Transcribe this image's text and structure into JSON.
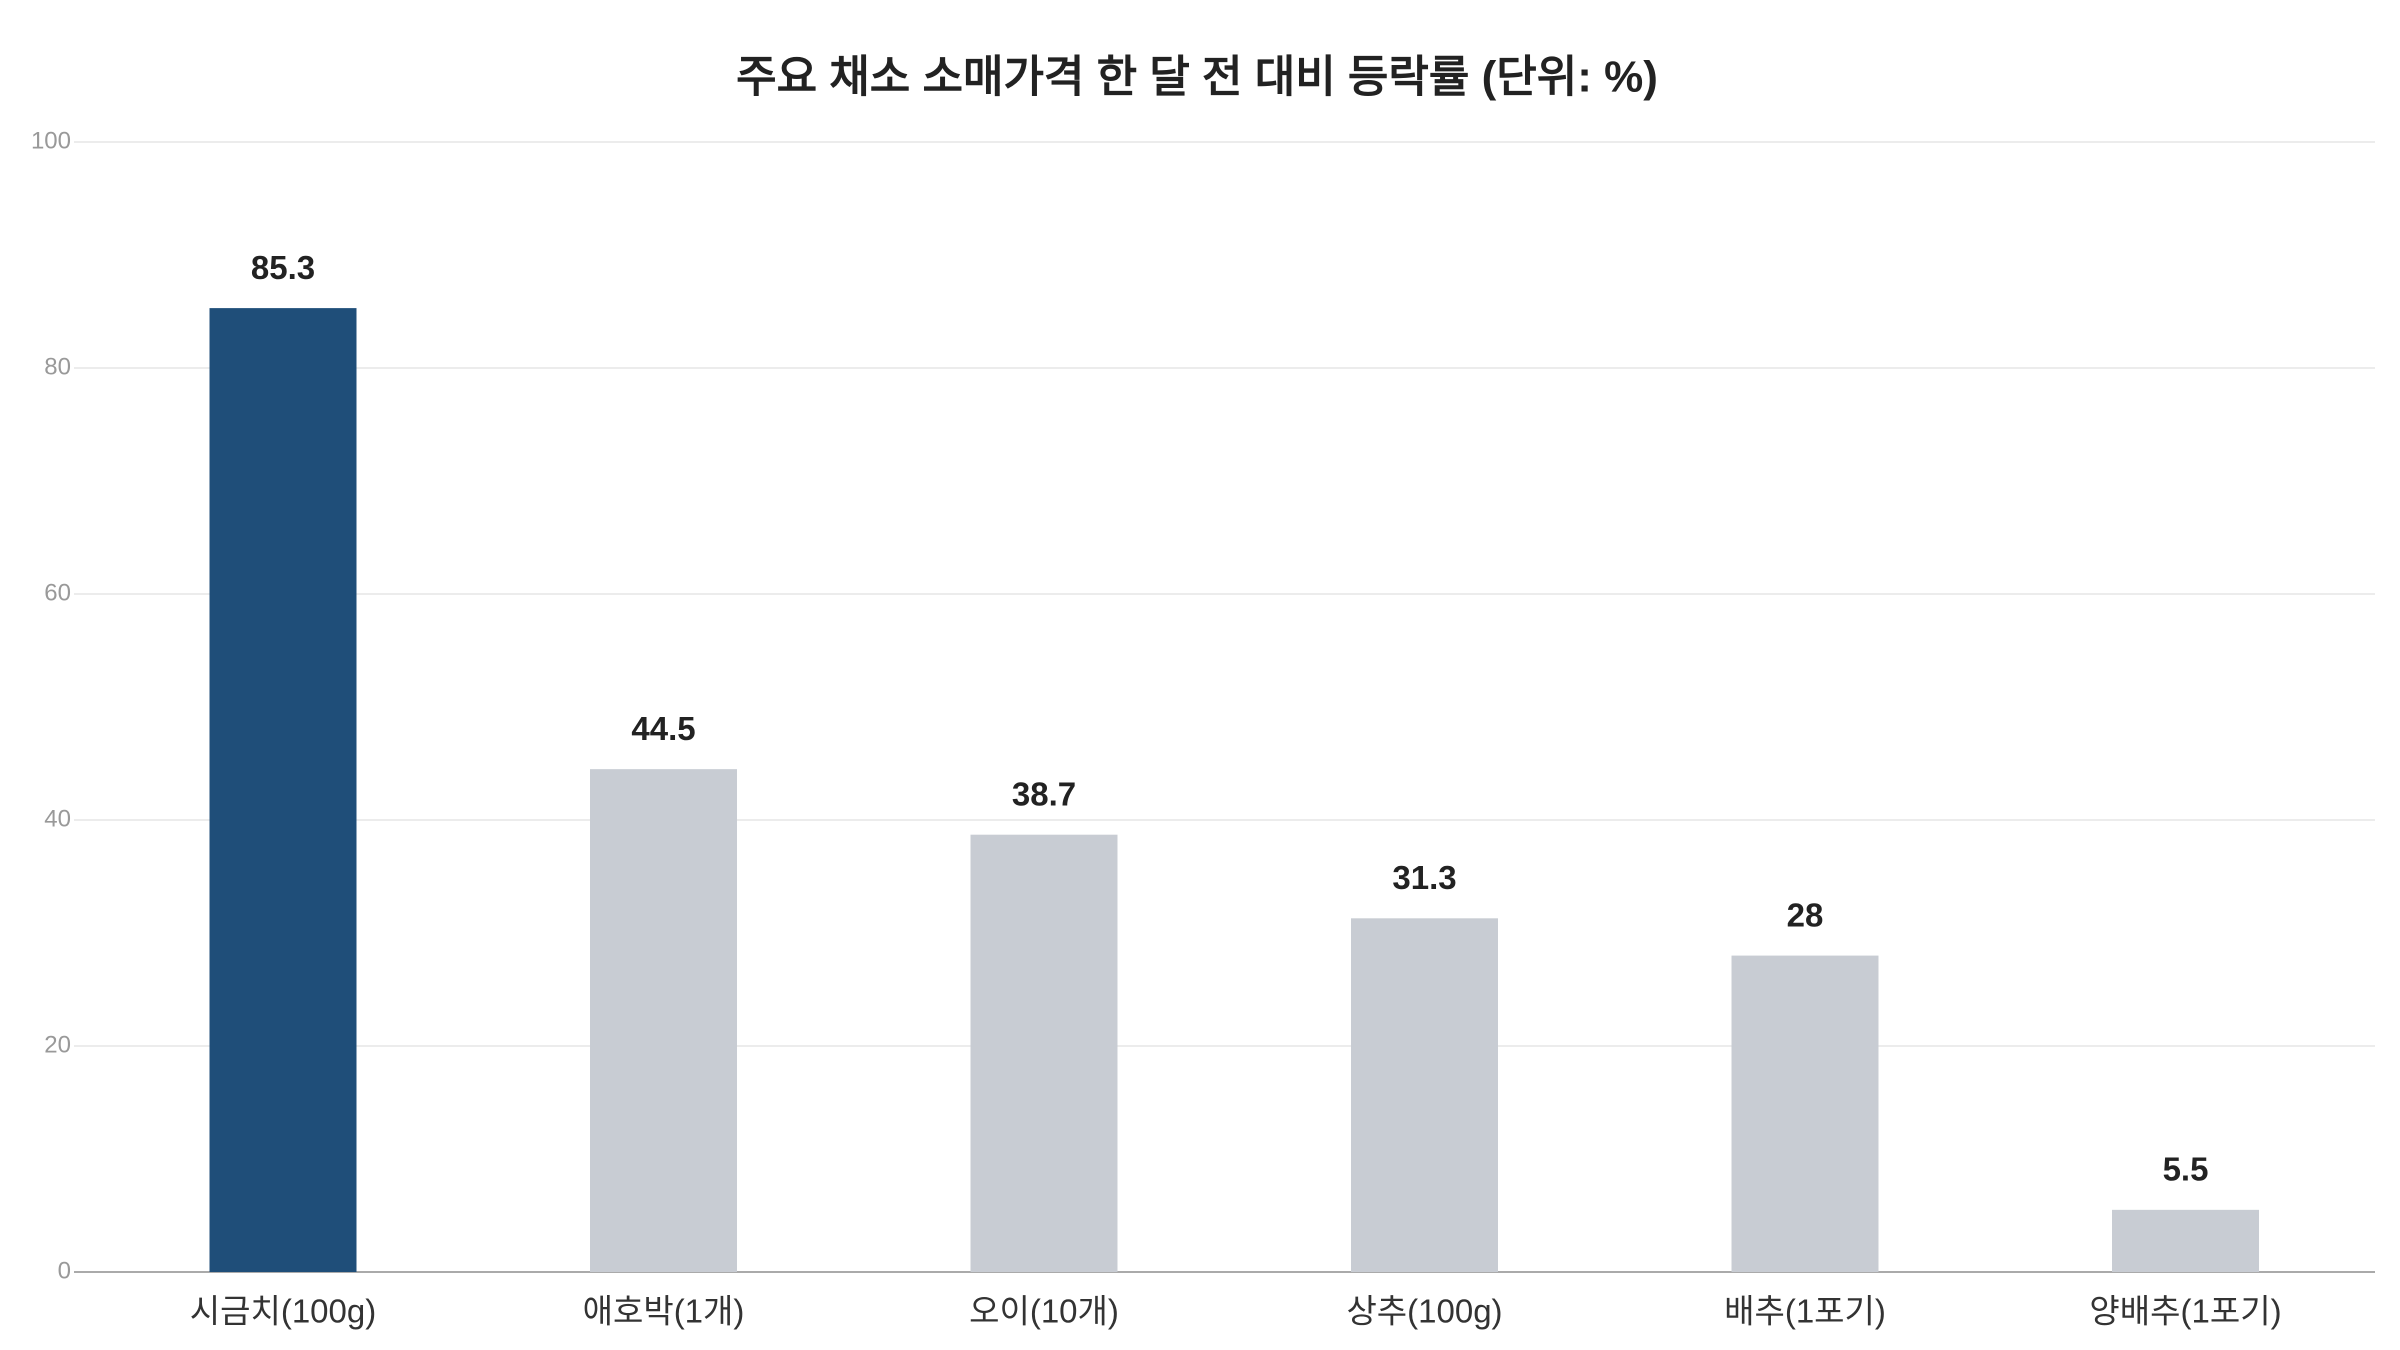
{
  "chart_data": {
    "type": "bar",
    "title": "주요 채소 소매가격 한 달 전 대비 등락률 (단위: %)",
    "categories": [
      "시금치(100g)",
      "애호박(1개)",
      "오이(10개)",
      "상추(100g)",
      "배추(1포기)",
      "양배추(1포기)"
    ],
    "values": [
      85.3,
      44.5,
      38.7,
      31.3,
      28,
      5.5
    ],
    "colors": [
      "#1f4e79",
      "#c8ccd3",
      "#c8ccd3",
      "#c8ccd3",
      "#c8ccd3",
      "#c8ccd3"
    ],
    "ylim": [
      0,
      100
    ],
    "yticks": [
      0,
      20,
      40,
      60,
      80,
      100
    ],
    "grid": true
  }
}
